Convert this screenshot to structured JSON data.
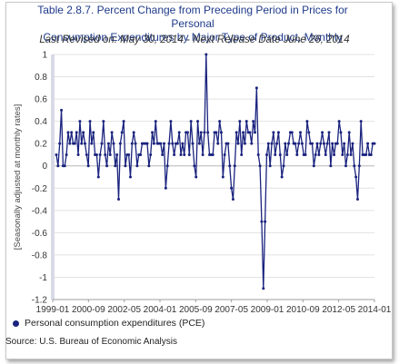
{
  "chart_data": {
    "type": "line",
    "title_line1": "Table 2.8.7. Percent Change from Preceding Period in Prices for Personal",
    "title_line2": "Consumption Expenditures by Major Type of Product, Monthly",
    "subtitle": "Last Revised on: May 30, 2014 - Next Release Date June 26, 2014",
    "ylabel": "[Seasonally adjusted at monthly rates]",
    "ylim": [
      -1.2,
      1.0
    ],
    "yticks": [
      "1",
      "0.8",
      "0.6",
      "0.4",
      "0.2",
      "0",
      "-0.2",
      "-0.4",
      "-0.6",
      "-0.8",
      "-1",
      "-1.2"
    ],
    "xticks": [
      "1999-01",
      "2000-09",
      "2002-05",
      "2004-01",
      "2005-09",
      "2007-05",
      "2009-01",
      "2010-09",
      "2012-05",
      "2014-01"
    ],
    "grid": true,
    "legend_position": "bottom-left",
    "series": [
      {
        "name": "Personal consumption expenditures (PCE)",
        "color": "#1a237e",
        "x_start": "1999-01",
        "x_end": "2014-04",
        "values": [
          0.1,
          0.0,
          0.2,
          0.5,
          0.0,
          0.0,
          0.1,
          0.3,
          0.2,
          0.3,
          0.2,
          0.2,
          0.3,
          0.1,
          0.4,
          0.2,
          0.3,
          0.2,
          0.1,
          0.0,
          0.4,
          0.2,
          0.3,
          0.1,
          0.1,
          -0.1,
          0.1,
          0.2,
          0.4,
          0.1,
          0.0,
          0.2,
          0.1,
          0.3,
          0.2,
          0.0,
          0.1,
          -0.3,
          0.2,
          0.3,
          0.4,
          0.0,
          0.1,
          0.1,
          -0.1,
          0.2,
          0.3,
          0.2,
          0.0,
          0.1,
          0.1,
          0.2,
          0.2,
          0.2,
          0.2,
          0.0,
          0.1,
          0.3,
          0.2,
          0.4,
          0.2,
          0.2,
          0.2,
          0.1,
          0.2,
          -0.2,
          0.0,
          0.2,
          0.4,
          0.2,
          0.1,
          0.2,
          0.2,
          0.3,
          0.1,
          0.2,
          0.1,
          0.3,
          0.3,
          0.1,
          0.4,
          0.2,
          0.0,
          -0.1,
          0.4,
          0.2,
          0.3,
          0.1,
          0.3,
          1.0,
          0.3,
          0.1,
          0.1,
          0.1,
          0.3,
          0.3,
          0.2,
          0.4,
          0.3,
          -0.1,
          0.1,
          0.2,
          0.2,
          0.0,
          -0.2,
          -0.3,
          0.0,
          0.3,
          0.2,
          0.4,
          0.1,
          0.3,
          0.2,
          0.4,
          0.3,
          0.3,
          0.2,
          0.4,
          0.3,
          0.7,
          0.1,
          0.0,
          -0.5,
          -1.1,
          -0.5,
          0.1,
          0.2,
          0.0,
          0.2,
          0.3,
          0.1,
          0.2,
          0.3,
          0.1,
          -0.1,
          0.0,
          0.2,
          0.1,
          0.2,
          0.3,
          0.3,
          0.2,
          0.2,
          0.1,
          0.2,
          0.3,
          0.2,
          0.1,
          0.1,
          0.4,
          0.3,
          0.2,
          0.2,
          0.0,
          0.1,
          0.2,
          0.1,
          0.2,
          0.3,
          0.2,
          0.1,
          0.2,
          0.3,
          0.0,
          0.2,
          0.1,
          0.2,
          0.2,
          0.4,
          0.3,
          0.1,
          0.2,
          0.0,
          0.1,
          0.3,
          0.1,
          0.2,
          0.0,
          -0.1,
          -0.3,
          0.0,
          0.4,
          0.1,
          0.1,
          0.1,
          0.2,
          0.1,
          0.1,
          0.2,
          0.2
        ]
      }
    ]
  },
  "source_text": "Source: U.S. Bureau of Economic Analysis"
}
